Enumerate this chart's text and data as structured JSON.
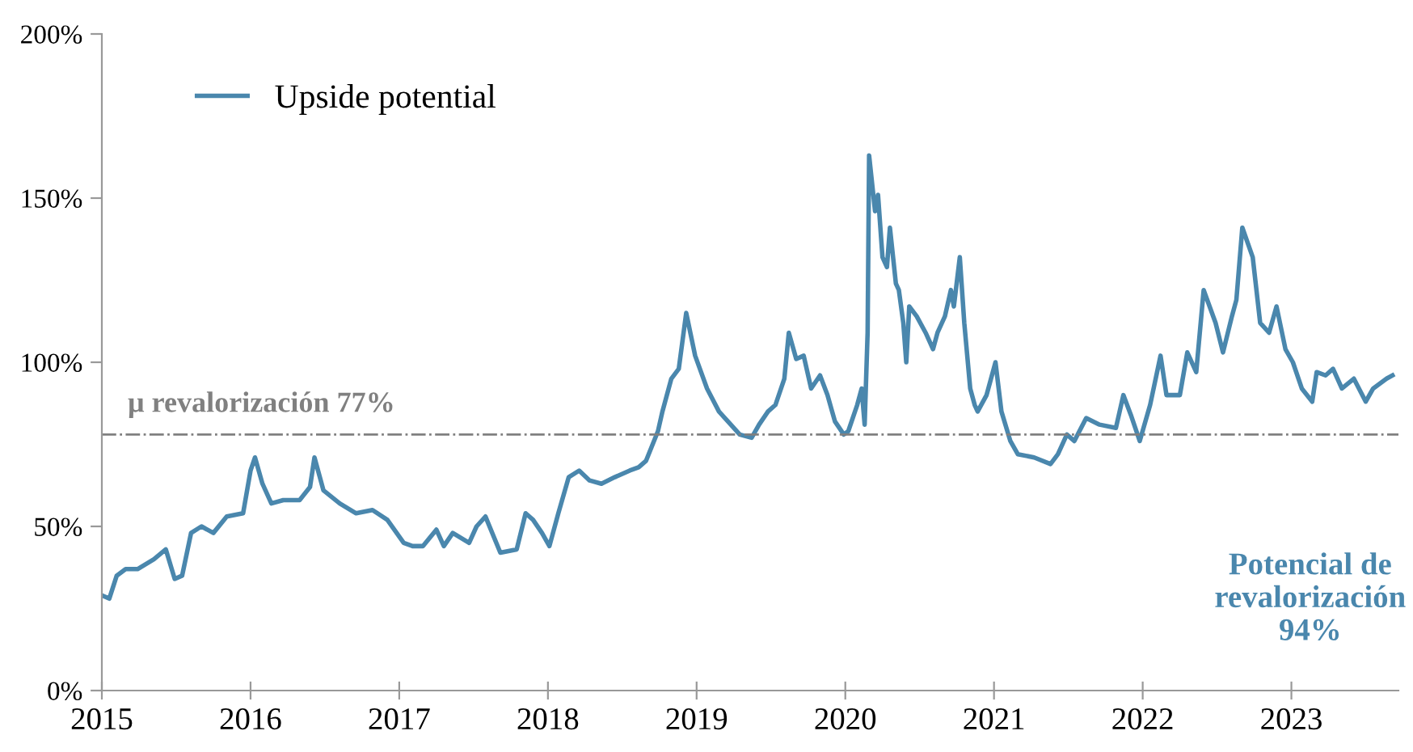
{
  "chart_data": {
    "type": "line",
    "x": [
      2015.0,
      2015.05,
      2015.1,
      2015.16,
      2015.24,
      2015.35,
      2015.43,
      2015.49,
      2015.54,
      2015.6,
      2015.67,
      2015.75,
      2015.84,
      2015.95,
      2016.0,
      2016.03,
      2016.08,
      2016.14,
      2016.22,
      2016.33,
      2016.4,
      2016.43,
      2016.49,
      2016.6,
      2016.71,
      2016.82,
      2016.92,
      2017.03,
      2017.09,
      2017.16,
      2017.25,
      2017.3,
      2017.36,
      2017.47,
      2017.52,
      2017.58,
      2017.68,
      2017.79,
      2017.85,
      2017.9,
      2017.96,
      2018.01,
      2018.07,
      2018.14,
      2018.21,
      2018.28,
      2018.36,
      2018.45,
      2018.55,
      2018.61,
      2018.66,
      2018.74,
      2018.77,
      2018.83,
      2018.88,
      2018.93,
      2018.99,
      2019.07,
      2019.15,
      2019.23,
      2019.29,
      2019.37,
      2019.42,
      2019.48,
      2019.53,
      2019.59,
      2019.62,
      2019.67,
      2019.72,
      2019.77,
      2019.83,
      2019.88,
      2019.93,
      2019.99,
      2020.02,
      2020.08,
      2020.11,
      2020.13,
      2020.15,
      2020.16,
      2020.2,
      2020.22,
      2020.25,
      2020.28,
      2020.3,
      2020.34,
      2020.36,
      2020.39,
      2020.41,
      2020.43,
      2020.48,
      2020.54,
      2020.59,
      2020.62,
      2020.67,
      2020.71,
      2020.73,
      2020.77,
      2020.8,
      2020.84,
      2020.87,
      2020.89,
      2020.95,
      2021.01,
      2021.05,
      2021.11,
      2021.16,
      2021.27,
      2021.38,
      2021.43,
      2021.49,
      2021.54,
      2021.62,
      2021.71,
      2021.82,
      2021.87,
      2021.92,
      2021.98,
      2022.05,
      2022.12,
      2022.16,
      2022.25,
      2022.3,
      2022.36,
      2022.41,
      2022.49,
      2022.54,
      2022.6,
      2022.63,
      2022.67,
      2022.74,
      2022.79,
      2022.85,
      2022.9,
      2022.96,
      2023.01,
      2023.07,
      2023.14,
      2023.17,
      2023.23,
      2023.28,
      2023.34,
      2023.42,
      2023.5,
      2023.55,
      2023.64,
      2023.68
    ],
    "series": [
      {
        "name": "Upside potential",
        "color": "#4a87ad",
        "values": [
          29,
          28,
          35,
          37,
          37,
          40,
          43,
          34,
          35,
          48,
          50,
          48,
          53,
          54,
          67,
          71,
          63,
          57,
          58,
          58,
          62,
          71,
          61,
          57,
          54,
          55,
          52,
          45,
          44,
          44,
          49,
          44,
          48,
          45,
          50,
          53,
          42,
          43,
          54,
          52,
          48,
          44,
          54,
          65,
          67,
          64,
          63,
          65,
          67,
          68,
          70,
          79,
          85,
          95,
          98,
          115,
          102,
          92,
          85,
          81,
          78,
          77,
          81,
          85,
          87,
          95,
          109,
          101,
          102,
          92,
          96,
          90,
          82,
          78,
          79,
          87,
          92,
          81,
          109,
          163,
          146,
          151,
          132,
          129,
          141,
          124,
          122,
          112,
          100,
          117,
          114,
          109,
          104,
          109,
          114,
          122,
          117,
          132,
          112,
          92,
          87,
          85,
          90,
          100,
          85,
          76,
          72,
          71,
          69,
          72,
          78,
          76,
          83,
          81,
          80,
          90,
          84,
          76,
          87,
          102,
          90,
          90,
          103,
          97,
          122,
          112,
          103,
          114,
          119,
          141,
          132,
          112,
          109,
          117,
          104,
          100,
          92,
          88,
          97,
          96,
          98,
          92,
          95,
          88,
          92,
          95,
          96
        ]
      }
    ],
    "xlim": [
      2015,
      2023.72
    ],
    "xticks": [
      2015,
      2016,
      2017,
      2018,
      2019,
      2020,
      2021,
      2022,
      2023
    ],
    "ylim": [
      0,
      200
    ],
    "yticks": [
      {
        "value": 0,
        "label": "0%"
      },
      {
        "value": 50,
        "label": "50%"
      },
      {
        "value": 100,
        "label": "100%"
      },
      {
        "value": 150,
        "label": "150%"
      },
      {
        "value": 200,
        "label": "200%"
      }
    ],
    "ref_lines": [
      {
        "axis": "y",
        "value": 78,
        "label": "μ revalorización 77%",
        "color": "#808080",
        "line_style": "dashdot"
      }
    ],
    "annotations": [
      "Potencial de\nrevalorización\n94%"
    ],
    "legend": "top left",
    "grid": false,
    "marker": "none",
    "line_style": "solid"
  }
}
